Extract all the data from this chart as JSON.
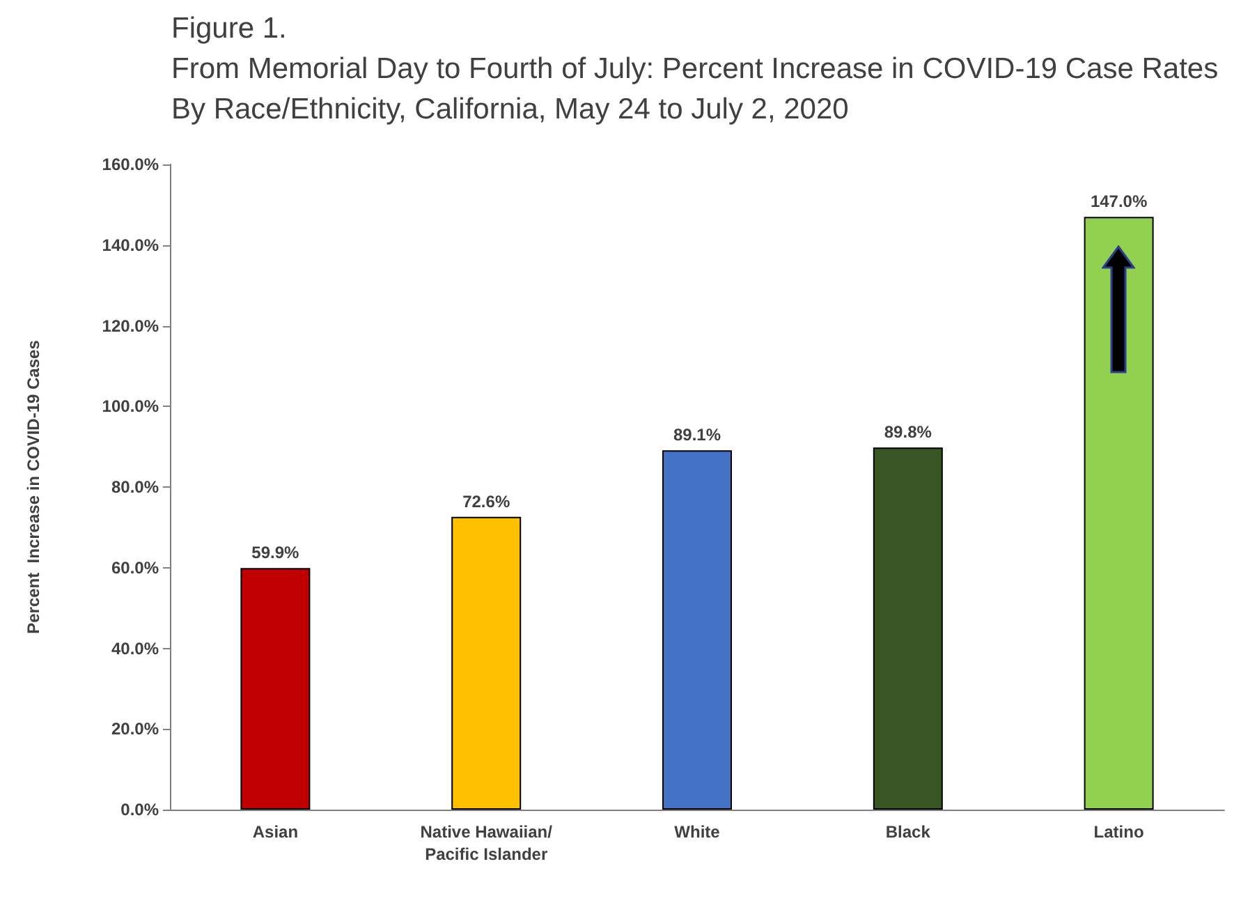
{
  "chart_data": {
    "type": "bar",
    "title": "Figure 1.",
    "subtitle": "From Memorial Day to Fourth of July: Percent Increase in COVID-19 Case Rates By Race/Ethnicity, California, May 24 to July 2, 2020",
    "ylabel": "Percent  Increase in COVID-19 Cases",
    "categories": [
      "Asian",
      "Native Hawaiian/Pacific Islander",
      "White",
      "Black",
      "Latino"
    ],
    "values": [
      59.9,
      72.6,
      89.1,
      89.8,
      147.0
    ],
    "value_labels": [
      "59.9%",
      "72.6%",
      "89.1%",
      "89.8%",
      "147.0%"
    ],
    "colors": [
      "#c00000",
      "#ffc000",
      "#4472c4",
      "#375623",
      "#92d050"
    ],
    "ylim": [
      0,
      160
    ],
    "yticks": [
      {
        "value": 0,
        "label": "0.0%"
      },
      {
        "value": 20,
        "label": "20.0%"
      },
      {
        "value": 40,
        "label": "40.0%"
      },
      {
        "value": 60,
        "label": "60.0%"
      },
      {
        "value": 80,
        "label": "80.0%"
      },
      {
        "value": 100,
        "label": "100.0%"
      },
      {
        "value": 120,
        "label": "120.0%"
      },
      {
        "value": 140,
        "label": "140.0%"
      },
      {
        "value": 160,
        "label": "160.0%"
      }
    ],
    "grid": false
  }
}
